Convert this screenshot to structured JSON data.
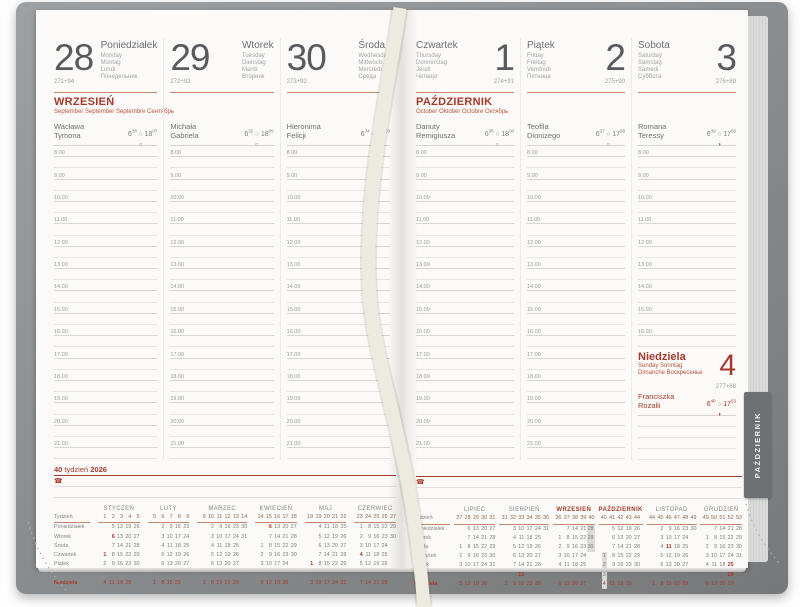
{
  "tab_label": "PAŹDZIERNIK",
  "symbols": {
    "sun": "○",
    "phone": "☎"
  },
  "colors": {
    "accent_red": "#a63a2c",
    "salmon_rule": "#c18a6f",
    "cover_gray": "#888b8d",
    "tab_gray": "#6e7174",
    "highlight_gray": "#dcdad6"
  },
  "footer": {
    "week_num": "40",
    "week_word": " tydzień ",
    "week_year": "2026",
    "phone_icon": "☎"
  },
  "months": {
    "wrzesien": {
      "title": "WRZESIEŃ",
      "subtitle": "September  September  Septembre  Сентябрь"
    },
    "pazdziernik": {
      "title": "PAŹDZIERNIK",
      "subtitle": "October  Oktober  Octobre  Октябрь"
    }
  },
  "hours": {
    "full": [
      "8.00",
      "9.00",
      "10.00",
      "11.00",
      "12.00",
      "13.00",
      "14.00",
      "15.00",
      "16.00",
      "17.00",
      "18.00",
      "19.00",
      "20.00",
      "21.00"
    ],
    "sat": [
      "8.00",
      "9.00",
      "10.00",
      "11.00",
      "12.00",
      "13.00",
      "14.00",
      "15.00",
      "16.00"
    ]
  },
  "days": [
    {
      "num": "28",
      "name": "Poniedziałek",
      "langs": [
        "Monday",
        "Montag",
        "Lundi",
        "Понедельник"
      ],
      "doy": "271+94",
      "namedays": [
        "Wacława",
        "Tymona"
      ],
      "sunrise": [
        "6",
        "30"
      ],
      "sunset": [
        "18",
        "07"
      ],
      "moon": "○",
      "hours": "full",
      "month": "wrzesien",
      "flip": false,
      "sunday_after": false
    },
    {
      "num": "29",
      "name": "Wtorek",
      "langs": [
        "Tuesday",
        "Dienstag",
        "Mardi",
        "Вторник"
      ],
      "doy": "272+93",
      "namedays": [
        "Michała",
        "Gabriela"
      ],
      "sunrise": [
        "6",
        "32"
      ],
      "sunset": [
        "18",
        "05"
      ],
      "moon": "○",
      "hours": "full",
      "month": null,
      "flip": false,
      "sunday_after": false
    },
    {
      "num": "30",
      "name": "Środa",
      "langs": [
        "Wednesday",
        "Mittwoch",
        "Mercredi",
        "Среда"
      ],
      "doy": "273+92",
      "namedays": [
        "Hieronima",
        "Felicji"
      ],
      "sunrise": [
        "6",
        "34"
      ],
      "sunset": [
        "18",
        "03"
      ],
      "moon": "○",
      "hours": "full",
      "month": null,
      "flip": false,
      "sunday_after": false
    },
    {
      "num": "1",
      "name": "Czwartek",
      "langs": [
        "Thursday",
        "Donnerstag",
        "Jeudi",
        "Четверг"
      ],
      "doy": "274+91",
      "namedays": [
        "Danuty",
        "Remigiusza"
      ],
      "sunrise": [
        "6",
        "35"
      ],
      "sunset": [
        "18",
        "00"
      ],
      "moon": "○",
      "hours": "full",
      "month": "pazdziernik",
      "flip": true,
      "sunday_after": false
    },
    {
      "num": "2",
      "name": "Piątek",
      "langs": [
        "Friday",
        "Freitag",
        "Vendredi",
        "Пятница"
      ],
      "doy": "275+90",
      "namedays": [
        "Teofila",
        "Dionizego"
      ],
      "sunrise": [
        "6",
        "37"
      ],
      "sunset": [
        "17",
        "58"
      ],
      "moon": "○",
      "hours": "full",
      "month": null,
      "flip": true,
      "sunday_after": false
    },
    {
      "num": "3",
      "name": "Sobota",
      "langs": [
        "Saturday",
        "Samstag",
        "Samedi",
        "Суббота"
      ],
      "doy": "276+89",
      "namedays": [
        "Romana",
        "Teressy"
      ],
      "sunrise": [
        "6",
        "39"
      ],
      "sunset": [
        "17",
        "56"
      ],
      "moon": "◑",
      "hours": "sat",
      "month": null,
      "flip": true,
      "sunday_after": true
    }
  ],
  "sunday": {
    "num": "4",
    "name": "Niedziela",
    "langs": [
      "Sunday Sonntag",
      "Dimanche Воскресенье"
    ],
    "doy": "277+88",
    "namedays": [
      "Franciszka",
      "Rozalii"
    ],
    "sunrise": [
      "6",
      "40"
    ],
    "sunset": [
      "17",
      "53"
    ],
    "moon": "◑"
  },
  "minical": {
    "row_labels": [
      "Tydzień",
      "Poniedziałek",
      "Wtorek",
      "Środa",
      "Czwartek",
      "Piątek",
      "Sobota",
      "Niedziela"
    ],
    "months": [
      {
        "name": "STYCZEŃ",
        "weeks": [
          "1",
          "2",
          "3",
          "4",
          "5"
        ],
        "red_days": [
          "1",
          "6"
        ],
        "hl": [],
        "rows": [
          [
            "",
            "5",
            "12",
            "19",
            "26"
          ],
          [
            "",
            "6",
            "13",
            "20",
            "27"
          ],
          [
            "",
            "7",
            "14",
            "21",
            "28"
          ],
          [
            "1",
            "8",
            "15",
            "22",
            "29"
          ],
          [
            "2",
            "9",
            "16",
            "23",
            "30"
          ],
          [
            "3",
            "10",
            "17",
            "24",
            "31"
          ],
          [
            "4",
            "11",
            "18",
            "25",
            ""
          ]
        ]
      },
      {
        "name": "LUTY",
        "weeks": [
          "5",
          "6",
          "7",
          "8",
          "9"
        ],
        "red_days": [],
        "hl": [],
        "rows": [
          [
            "",
            "2",
            "9",
            "16",
            "23"
          ],
          [
            "",
            "3",
            "10",
            "17",
            "24"
          ],
          [
            "",
            "4",
            "11",
            "18",
            "25"
          ],
          [
            "",
            "5",
            "12",
            "19",
            "26"
          ],
          [
            "",
            "6",
            "13",
            "20",
            "27"
          ],
          [
            "",
            "7",
            "14",
            "21",
            "28"
          ],
          [
            "1",
            "8",
            "15",
            "22",
            ""
          ]
        ]
      },
      {
        "name": "MARZEC",
        "weeks": [
          "9",
          "10",
          "11",
          "12",
          "13",
          "14"
        ],
        "red_days": [],
        "hl": [],
        "rows": [
          [
            "",
            "2",
            "9",
            "16",
            "23",
            "30"
          ],
          [
            "",
            "3",
            "10",
            "17",
            "24",
            "31"
          ],
          [
            "",
            "4",
            "11",
            "18",
            "25",
            ""
          ],
          [
            "",
            "5",
            "12",
            "19",
            "26",
            ""
          ],
          [
            "",
            "6",
            "13",
            "20",
            "27",
            ""
          ],
          [
            "",
            "7",
            "14",
            "21",
            "28",
            ""
          ],
          [
            "1",
            "8",
            "15",
            "22",
            "29",
            ""
          ]
        ]
      },
      {
        "name": "KWIECIEŃ",
        "weeks": [
          "14",
          "15",
          "16",
          "17",
          "18"
        ],
        "red_days": [
          "6"
        ],
        "hl": [],
        "rows": [
          [
            "",
            "6",
            "13",
            "20",
            "27"
          ],
          [
            "",
            "7",
            "14",
            "21",
            "28"
          ],
          [
            "1",
            "8",
            "15",
            "22",
            "29"
          ],
          [
            "2",
            "9",
            "16",
            "23",
            "30"
          ],
          [
            "3",
            "10",
            "17",
            "24",
            ""
          ],
          [
            "4",
            "11",
            "18",
            "25",
            ""
          ],
          [
            "5",
            "12",
            "19",
            "26",
            ""
          ]
        ]
      },
      {
        "name": "MAJ",
        "weeks": [
          "18",
          "19",
          "20",
          "21",
          "22"
        ],
        "red_days": [
          "1"
        ],
        "hl": [],
        "rows": [
          [
            "",
            "4",
            "11",
            "18",
            "25"
          ],
          [
            "",
            "5",
            "12",
            "19",
            "26"
          ],
          [
            "",
            "6",
            "13",
            "20",
            "27"
          ],
          [
            "",
            "7",
            "14",
            "21",
            "28"
          ],
          [
            "1",
            "8",
            "15",
            "22",
            "29"
          ],
          [
            "2",
            "9",
            "16",
            "23",
            "30"
          ],
          [
            "3",
            "10",
            "17",
            "24",
            "31"
          ]
        ]
      },
      {
        "name": "CZERWIEC",
        "weeks": [
          "23",
          "24",
          "25",
          "26",
          "27"
        ],
        "red_days": [
          "4"
        ],
        "hl": [],
        "rows": [
          [
            "1",
            "8",
            "15",
            "22",
            "29"
          ],
          [
            "2",
            "9",
            "16",
            "23",
            "30"
          ],
          [
            "3",
            "10",
            "17",
            "24",
            ""
          ],
          [
            "4",
            "11",
            "18",
            "25",
            ""
          ],
          [
            "5",
            "12",
            "19",
            "26",
            ""
          ],
          [
            "6",
            "13",
            "20",
            "27",
            ""
          ],
          [
            "7",
            "14",
            "21",
            "28",
            ""
          ]
        ]
      },
      {
        "name": "LIPIEC",
        "weeks": [
          "27",
          "28",
          "29",
          "30",
          "31"
        ],
        "red_days": [],
        "hl": [],
        "rows": [
          [
            "",
            "6",
            "13",
            "20",
            "27"
          ],
          [
            "",
            "7",
            "14",
            "21",
            "28"
          ],
          [
            "1",
            "8",
            "15",
            "22",
            "29"
          ],
          [
            "2",
            "9",
            "16",
            "23",
            "30"
          ],
          [
            "3",
            "10",
            "17",
            "24",
            "31"
          ],
          [
            "4",
            "11",
            "18",
            "25",
            ""
          ],
          [
            "5",
            "12",
            "19",
            "26",
            ""
          ]
        ]
      },
      {
        "name": "SIERPIEŃ",
        "weeks": [
          "31",
          "32",
          "33",
          "34",
          "35",
          "36"
        ],
        "red_days": [
          "15"
        ],
        "hl": [],
        "rows": [
          [
            "",
            "3",
            "10",
            "17",
            "24",
            "31"
          ],
          [
            "",
            "4",
            "11",
            "18",
            "25",
            ""
          ],
          [
            "",
            "5",
            "12",
            "19",
            "26",
            ""
          ],
          [
            "",
            "6",
            "13",
            "20",
            "27",
            ""
          ],
          [
            "",
            "7",
            "14",
            "21",
            "28",
            ""
          ],
          [
            "1",
            "8",
            "15",
            "22",
            "29",
            ""
          ],
          [
            "2",
            "9",
            "16",
            "23",
            "30",
            ""
          ]
        ]
      },
      {
        "name": "WRZESIEŃ",
        "red": true,
        "weeks": [
          "36",
          "37",
          "38",
          "39",
          "40"
        ],
        "red_days": [],
        "hl": [
          "28",
          "29",
          "30"
        ],
        "rows": [
          [
            "",
            "7",
            "14",
            "21",
            "28"
          ],
          [
            "1",
            "8",
            "15",
            "22",
            "29"
          ],
          [
            "2",
            "9",
            "16",
            "23",
            "30"
          ],
          [
            "3",
            "10",
            "17",
            "24",
            ""
          ],
          [
            "4",
            "11",
            "18",
            "25",
            ""
          ],
          [
            "5",
            "12",
            "19",
            "26",
            ""
          ],
          [
            "6",
            "13",
            "20",
            "27",
            ""
          ]
        ]
      },
      {
        "name": "PAŹDZIERNIK",
        "red": true,
        "weeks": [
          "40",
          "41",
          "42",
          "43",
          "44"
        ],
        "red_days": [],
        "hl": [
          "1",
          "2",
          "3",
          "4"
        ],
        "rows": [
          [
            "",
            "5",
            "12",
            "19",
            "26"
          ],
          [
            "",
            "6",
            "13",
            "20",
            "27"
          ],
          [
            "",
            "7",
            "14",
            "21",
            "28"
          ],
          [
            "1",
            "8",
            "15",
            "22",
            "29"
          ],
          [
            "2",
            "9",
            "16",
            "23",
            "30"
          ],
          [
            "3",
            "10",
            "17",
            "24",
            "31"
          ],
          [
            "4",
            "11",
            "18",
            "25",
            ""
          ]
        ]
      },
      {
        "name": "LISTOPAD",
        "weeks": [
          "44",
          "45",
          "46",
          "47",
          "48",
          "49"
        ],
        "red_days": [
          "11"
        ],
        "hl": [],
        "rows": [
          [
            "",
            "2",
            "9",
            "16",
            "23",
            "30"
          ],
          [
            "",
            "3",
            "10",
            "17",
            "24",
            ""
          ],
          [
            "",
            "4",
            "11",
            "18",
            "25",
            ""
          ],
          [
            "",
            "5",
            "12",
            "19",
            "26",
            ""
          ],
          [
            "",
            "6",
            "13",
            "20",
            "27",
            ""
          ],
          [
            "",
            "7",
            "14",
            "21",
            "28",
            ""
          ],
          [
            "1",
            "8",
            "15",
            "22",
            "29",
            ""
          ]
        ]
      },
      {
        "name": "GRUDZIEŃ",
        "weeks": [
          "49",
          "50",
          "51",
          "52",
          "53"
        ],
        "red_days": [
          "25",
          "26"
        ],
        "hl": [],
        "rows": [
          [
            "",
            "7",
            "14",
            "21",
            "28"
          ],
          [
            "1",
            "8",
            "15",
            "22",
            "29"
          ],
          [
            "2",
            "9",
            "16",
            "23",
            "30"
          ],
          [
            "3",
            "10",
            "17",
            "24",
            "31"
          ],
          [
            "4",
            "11",
            "18",
            "25",
            ""
          ],
          [
            "5",
            "12",
            "19",
            "26",
            ""
          ],
          [
            "6",
            "13",
            "20",
            "27",
            ""
          ]
        ]
      }
    ]
  }
}
